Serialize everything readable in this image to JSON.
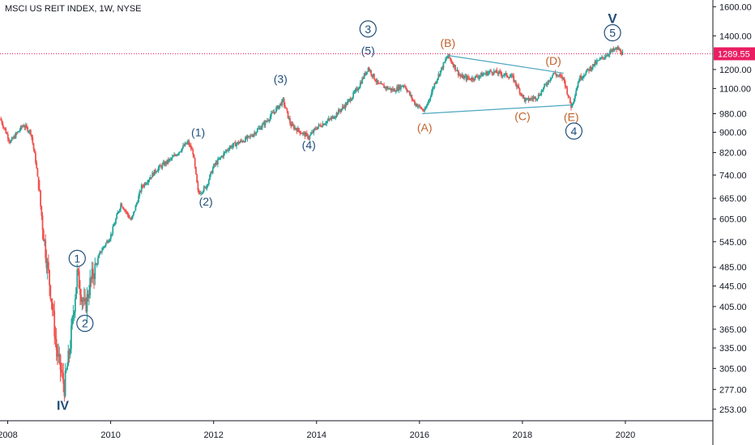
{
  "header": {
    "title": "MSCI US REIT INDEX, 1W, NYSE"
  },
  "chart_data": {
    "type": "candlestick",
    "y_scale": "log",
    "ylim": [
      240,
      1650
    ],
    "y_ticks": [
      "1600.00",
      "1400.00",
      "1200.00",
      "1100.00",
      "980.00",
      "900.00",
      "820.00",
      "740.00",
      "665.00",
      "605.00",
      "545.00",
      "485.00",
      "445.00",
      "405.00",
      "365.00",
      "335.00",
      "305.00",
      "277.00",
      "253.00"
    ],
    "x_ticks": [
      "2008",
      "2010",
      "2012",
      "2014",
      "2016",
      "2018",
      "2020"
    ],
    "xlim": [
      2007.85,
      2021.7
    ],
    "last_price": {
      "label": "1289.55",
      "value": 1289.55,
      "color": "#e91e63"
    },
    "up_color": "#26a69a",
    "down_color": "#ef5350",
    "price_path": [
      [
        2007.85,
        960
      ],
      [
        2008.05,
        860
      ],
      [
        2008.3,
        930
      ],
      [
        2008.45,
        900
      ],
      [
        2008.55,
        780
      ],
      [
        2008.7,
        560
      ],
      [
        2008.85,
        420
      ],
      [
        2008.95,
        330
      ],
      [
        2009.1,
        280
      ],
      [
        2009.2,
        330
      ],
      [
        2009.35,
        470
      ],
      [
        2009.5,
        400
      ],
      [
        2009.6,
        450
      ],
      [
        2009.8,
        520
      ],
      [
        2010.0,
        560
      ],
      [
        2010.2,
        650
      ],
      [
        2010.4,
        600
      ],
      [
        2010.6,
        700
      ],
      [
        2010.9,
        760
      ],
      [
        2011.2,
        800
      ],
      [
        2011.5,
        860
      ],
      [
        2011.6,
        820
      ],
      [
        2011.7,
        680
      ],
      [
        2011.85,
        700
      ],
      [
        2012.0,
        770
      ],
      [
        2012.3,
        840
      ],
      [
        2012.7,
        880
      ],
      [
        2013.0,
        940
      ],
      [
        2013.35,
        1040
      ],
      [
        2013.5,
        930
      ],
      [
        2013.7,
        900
      ],
      [
        2013.85,
        880
      ],
      [
        2014.0,
        920
      ],
      [
        2014.3,
        960
      ],
      [
        2014.6,
        1030
      ],
      [
        2014.8,
        1100
      ],
      [
        2015.0,
        1210
      ],
      [
        2015.2,
        1120
      ],
      [
        2015.5,
        1090
      ],
      [
        2015.7,
        1120
      ],
      [
        2015.9,
        1030
      ],
      [
        2016.1,
        990
      ],
      [
        2016.3,
        1130
      ],
      [
        2016.55,
        1280
      ],
      [
        2016.8,
        1160
      ],
      [
        2017.0,
        1150
      ],
      [
        2017.4,
        1190
      ],
      [
        2017.8,
        1160
      ],
      [
        2018.05,
        1040
      ],
      [
        2018.3,
        1060
      ],
      [
        2018.6,
        1180
      ],
      [
        2018.8,
        1150
      ],
      [
        2018.95,
        1010
      ],
      [
        2019.1,
        1150
      ],
      [
        2019.4,
        1230
      ],
      [
        2019.7,
        1300
      ],
      [
        2019.85,
        1320
      ],
      [
        2019.95,
        1289.55
      ]
    ],
    "trend_lines": [
      {
        "from": [
          2016.05,
          980
        ],
        "to": [
          2018.95,
          1020
        ],
        "color": "#4ca7c0"
      },
      {
        "from": [
          2016.55,
          1280
        ],
        "to": [
          2018.8,
          1180
        ],
        "color": "#4ca7c0"
      }
    ],
    "annotations": [
      {
        "text": "IV",
        "x": 2009.07,
        "y": 258,
        "color": "navy",
        "size": 16,
        "bold": true
      },
      {
        "text": "1",
        "x": 2009.35,
        "y": 505,
        "color": "navy",
        "circled": true
      },
      {
        "text": "2",
        "x": 2009.5,
        "y": 375,
        "color": "navy",
        "circled": true
      },
      {
        "text": "(1)",
        "x": 2011.7,
        "y": 900,
        "color": "navy"
      },
      {
        "text": "(2)",
        "x": 2011.85,
        "y": 655,
        "color": "navy"
      },
      {
        "text": "(3)",
        "x": 2013.3,
        "y": 1150,
        "color": "navy"
      },
      {
        "text": "(4)",
        "x": 2013.85,
        "y": 850,
        "color": "navy"
      },
      {
        "text": "3",
        "x": 2015.0,
        "y": 1445,
        "color": "navy",
        "circled": true
      },
      {
        "text": "(5)",
        "x": 2015.0,
        "y": 1310,
        "color": "navy"
      },
      {
        "text": "(A)",
        "x": 2016.1,
        "y": 920,
        "color": "orange"
      },
      {
        "text": "(B)",
        "x": 2016.55,
        "y": 1355,
        "color": "orange"
      },
      {
        "text": "(C)",
        "x": 2018.0,
        "y": 970,
        "color": "orange"
      },
      {
        "text": "(D)",
        "x": 2018.6,
        "y": 1250,
        "color": "orange"
      },
      {
        "text": "(E)",
        "x": 2018.95,
        "y": 965,
        "color": "orange"
      },
      {
        "text": "4",
        "x": 2019.0,
        "y": 905,
        "color": "navy",
        "circled": true
      },
      {
        "text": "V",
        "x": 2019.75,
        "y": 1520,
        "color": "navy",
        "size": 17,
        "bold": true
      },
      {
        "text": "5",
        "x": 2019.75,
        "y": 1420,
        "color": "navy",
        "circled": true
      }
    ]
  }
}
